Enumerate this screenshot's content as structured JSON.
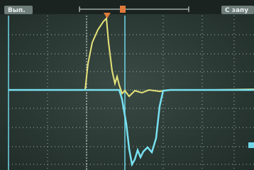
{
  "header": {
    "left_label": "Вып.",
    "right_label": "С запу"
  }
}
